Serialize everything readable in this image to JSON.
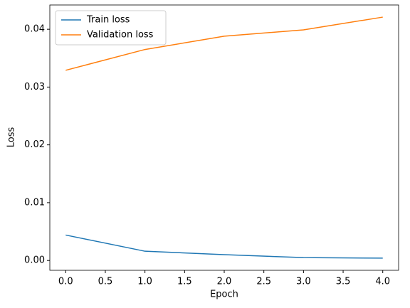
{
  "chart_data": {
    "type": "line",
    "x_label": "Epoch",
    "y_label": "Loss",
    "x": [
      0,
      1,
      2,
      3,
      4
    ],
    "series": [
      {
        "name": "Train loss",
        "color": "#1f77b4",
        "values": [
          0.0044,
          0.0016,
          0.001,
          0.0005,
          0.0004
        ]
      },
      {
        "name": "Validation loss",
        "color": "#ff7f0e",
        "values": [
          0.0329,
          0.0365,
          0.0388,
          0.0399,
          0.0421
        ]
      }
    ],
    "xlim": [
      -0.2,
      4.2
    ],
    "xticks": [
      {
        "value": 0,
        "label": "0.0"
      },
      {
        "value": 0.5,
        "label": "0.5"
      },
      {
        "value": 1,
        "label": "1.0"
      },
      {
        "value": 1.5,
        "label": "1.5"
      },
      {
        "value": 2,
        "label": "2.0"
      },
      {
        "value": 2.5,
        "label": "2.5"
      },
      {
        "value": 3,
        "label": "3.0"
      },
      {
        "value": 3.5,
        "label": "3.5"
      },
      {
        "value": 4,
        "label": "4.0"
      }
    ],
    "ylim": [
      -0.0017,
      0.0442
    ],
    "yticks": [
      {
        "value": 0,
        "label": "0.00"
      },
      {
        "value": 0.01,
        "label": "0.01"
      },
      {
        "value": 0.02,
        "label": "0.02"
      },
      {
        "value": 0.03,
        "label": "0.03"
      },
      {
        "value": 0.04,
        "label": "0.04"
      }
    ],
    "legend": "upper left"
  }
}
